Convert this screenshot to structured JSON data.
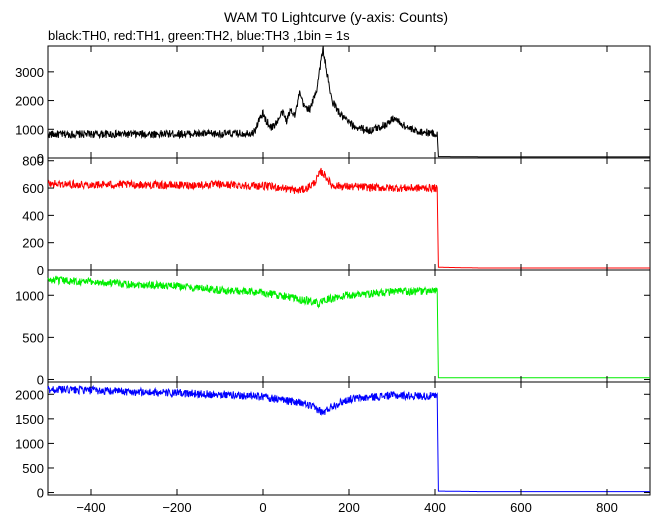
{
  "chart_data": {
    "type": "line",
    "title": "WAM T0 Lightcurve (y-axis: Counts)",
    "subtitle": "black:TH0, red:TH1, green:TH2, blue:TH3 ,1bin = 1s",
    "xlim": [
      -500,
      900
    ],
    "x_ticks": [
      -400,
      -200,
      0,
      200,
      400,
      600,
      800
    ],
    "x_tick_labels": [
      "−400",
      "−200",
      "0",
      "200",
      "400",
      "600",
      "800"
    ],
    "grid": false,
    "panels": [
      {
        "series_name": "TH0",
        "color": "#000000",
        "ylim": [
          0,
          3900
        ],
        "y_ticks": [
          0,
          1000,
          2000,
          3000
        ],
        "y_tick_labels": [
          "0",
          "1000",
          "2000",
          "3000"
        ],
        "data": [
          [
            -500,
            820
          ],
          [
            -400,
            830
          ],
          [
            -300,
            830
          ],
          [
            -200,
            840
          ],
          [
            -100,
            840
          ],
          [
            -50,
            850
          ],
          [
            -20,
            900
          ],
          [
            -10,
            1300
          ],
          [
            0,
            1550
          ],
          [
            5,
            1350
          ],
          [
            20,
            1050
          ],
          [
            35,
            1300
          ],
          [
            45,
            1600
          ],
          [
            55,
            1300
          ],
          [
            65,
            1700
          ],
          [
            75,
            1500
          ],
          [
            85,
            2250
          ],
          [
            95,
            1800
          ],
          [
            110,
            1700
          ],
          [
            125,
            2400
          ],
          [
            135,
            3400
          ],
          [
            140,
            3800
          ],
          [
            148,
            3000
          ],
          [
            160,
            2000
          ],
          [
            180,
            1500
          ],
          [
            210,
            1100
          ],
          [
            250,
            950
          ],
          [
            290,
            1200
          ],
          [
            305,
            1400
          ],
          [
            320,
            1200
          ],
          [
            350,
            950
          ],
          [
            400,
            850
          ],
          [
            405,
            820
          ],
          [
            408,
            50
          ],
          [
            500,
            40
          ],
          [
            700,
            40
          ],
          [
            900,
            40
          ]
        ]
      },
      {
        "series_name": "TH1",
        "color": "#ff0000",
        "ylim": [
          0,
          820
        ],
        "y_ticks": [
          0,
          200,
          400,
          600,
          800
        ],
        "y_tick_labels": [
          "0",
          "200",
          "400",
          "600",
          "800"
        ],
        "data": [
          [
            -500,
            630
          ],
          [
            -400,
            625
          ],
          [
            -300,
            625
          ],
          [
            -200,
            620
          ],
          [
            -100,
            625
          ],
          [
            0,
            615
          ],
          [
            50,
            600
          ],
          [
            80,
            580
          ],
          [
            100,
            595
          ],
          [
            120,
            640
          ],
          [
            135,
            720
          ],
          [
            145,
            690
          ],
          [
            160,
            620
          ],
          [
            200,
            610
          ],
          [
            300,
            600
          ],
          [
            400,
            600
          ],
          [
            405,
            590
          ],
          [
            408,
            20
          ],
          [
            500,
            15
          ],
          [
            700,
            15
          ],
          [
            900,
            15
          ]
        ]
      },
      {
        "series_name": "TH2",
        "color": "#00ee00",
        "ylim": [
          -30,
          1300
        ],
        "y_ticks": [
          0,
          500,
          1000
        ],
        "y_tick_labels": [
          "0",
          "500",
          "1000"
        ],
        "data": [
          [
            -500,
            1180
          ],
          [
            -400,
            1160
          ],
          [
            -300,
            1130
          ],
          [
            -200,
            1110
          ],
          [
            -100,
            1060
          ],
          [
            0,
            1030
          ],
          [
            50,
            990
          ],
          [
            80,
            950
          ],
          [
            110,
            930
          ],
          [
            130,
            900
          ],
          [
            150,
            950
          ],
          [
            200,
            1000
          ],
          [
            300,
            1040
          ],
          [
            400,
            1050
          ],
          [
            405,
            1040
          ],
          [
            408,
            20
          ],
          [
            500,
            20
          ],
          [
            700,
            20
          ],
          [
            900,
            20
          ]
        ]
      },
      {
        "series_name": "TH3",
        "color": "#0000ff",
        "ylim": [
          -50,
          2250
        ],
        "y_ticks": [
          0,
          500,
          1000,
          1500,
          2000
        ],
        "y_tick_labels": [
          "0",
          "500",
          "1000",
          "1500",
          "2000"
        ],
        "data": [
          [
            -500,
            2100
          ],
          [
            -400,
            2080
          ],
          [
            -300,
            2050
          ],
          [
            -200,
            2020
          ],
          [
            -100,
            2000
          ],
          [
            0,
            1950
          ],
          [
            50,
            1880
          ],
          [
            100,
            1800
          ],
          [
            130,
            1680
          ],
          [
            140,
            1620
          ],
          [
            160,
            1760
          ],
          [
            200,
            1900
          ],
          [
            300,
            1980
          ],
          [
            400,
            1960
          ],
          [
            405,
            1950
          ],
          [
            408,
            30
          ],
          [
            500,
            20
          ],
          [
            700,
            20
          ],
          [
            900,
            20
          ]
        ]
      }
    ]
  }
}
